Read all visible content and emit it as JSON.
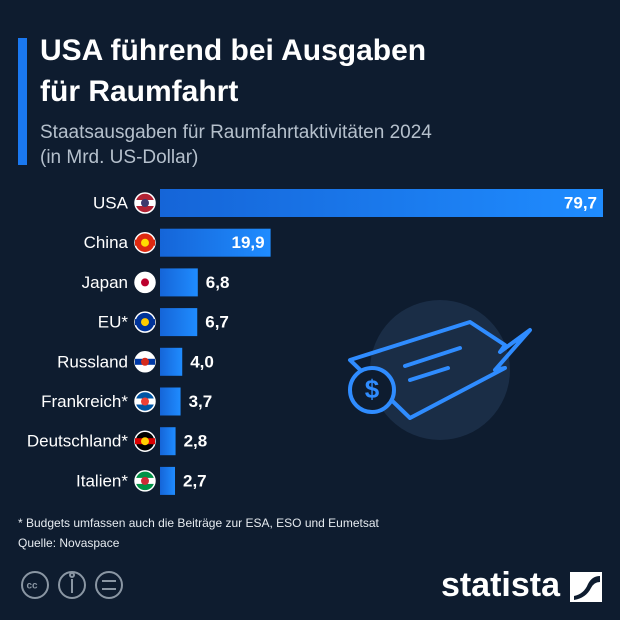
{
  "chart_data": {
    "type": "bar",
    "orientation": "horizontal",
    "title": [
      "USA führend bei Ausgaben",
      "für Raumfahrt"
    ],
    "subtitle": [
      "Staatsausgaben für Raumfahrtaktivitäten 2024",
      "(in Mrd. US-Dollar)"
    ],
    "categories": [
      "USA",
      "China",
      "Japan",
      "EU*",
      "Russland",
      "Frankreich*",
      "Deutschland*",
      "Italien*"
    ],
    "values": [
      79.7,
      19.9,
      6.8,
      6.7,
      4.0,
      3.7,
      2.8,
      2.7
    ],
    "value_labels": [
      "79,7",
      "19,9",
      "6,8",
      "6,7",
      "4,0",
      "3,7",
      "2,8",
      "2,7"
    ],
    "color": "#1a78f0",
    "footnote": "* Budgets umfassen auch die Beiträge zur ESA, ESO und Eumetsat",
    "source": "Quelle: Novaspace",
    "brand": "statista"
  }
}
